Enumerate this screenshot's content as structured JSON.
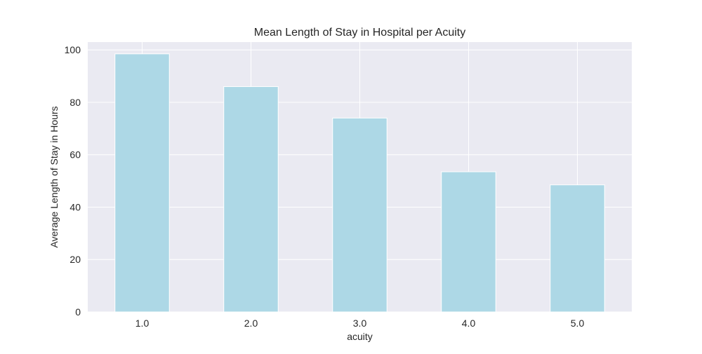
{
  "chart_data": {
    "type": "bar",
    "title": "Mean Length of Stay in Hospital per Acuity",
    "xlabel": "acuity",
    "ylabel": "Average Length of Stay in Hours",
    "categories": [
      "1.0",
      "2.0",
      "3.0",
      "4.0",
      "5.0"
    ],
    "values": [
      98.5,
      86.0,
      74.0,
      53.5,
      48.5
    ],
    "ylim": [
      0,
      103
    ],
    "yticks": [
      0,
      20,
      40,
      60,
      80,
      100
    ],
    "grid": true,
    "bar_color": "#add8e6",
    "plot_background": "#eaeaf2",
    "grid_color": "#ffffff"
  }
}
